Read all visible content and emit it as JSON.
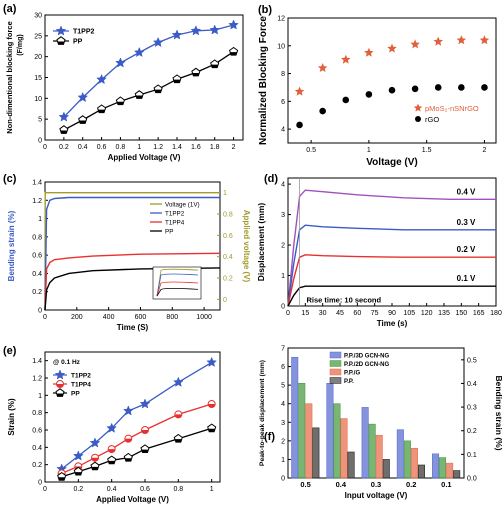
{
  "chart_data": [
    {
      "panel": "(a)",
      "type": "line",
      "xlabel": "Applied Voltage (V)",
      "ylabel": "Non-dimentional blocking force",
      "ylabel_unit": "(F/mg)",
      "xlim": [
        0.0,
        2.1
      ],
      "ylim": [
        0,
        30
      ],
      "xticks": [
        0.0,
        0.2,
        0.4,
        0.6,
        0.8,
        1.0,
        1.2,
        1.4,
        1.6,
        1.8,
        2.0
      ],
      "yticks": [
        0,
        5,
        10,
        15,
        20,
        25,
        30
      ],
      "legend": "top-left",
      "series": [
        {
          "name": "T1PP2",
          "marker": "star",
          "color": "#3b5bc6",
          "x": [
            0.2,
            0.4,
            0.6,
            0.8,
            1.0,
            1.2,
            1.4,
            1.6,
            1.8,
            2.0
          ],
          "y": [
            5.5,
            10.2,
            14.5,
            18.5,
            21.0,
            23.4,
            25.2,
            26.2,
            26.4,
            27.6
          ]
        },
        {
          "name": "PP",
          "marker": "pentagon",
          "color": "#000000",
          "x": [
            0.2,
            0.4,
            0.6,
            0.8,
            1.0,
            1.2,
            1.4,
            1.6,
            1.8,
            2.0
          ],
          "y": [
            2.4,
            4.8,
            7.4,
            9.3,
            10.8,
            12.2,
            14.6,
            16.2,
            18.2,
            21.2
          ]
        }
      ]
    },
    {
      "panel": "(b)",
      "type": "scatter",
      "xlabel": "Voltage (V)",
      "ylabel": "Normalized Blocking Force",
      "xlim": [
        0.3,
        2.1
      ],
      "ylim": [
        3,
        12
      ],
      "xticks": [
        0.5,
        1.0,
        1.5,
        2.0
      ],
      "yticks": [
        4,
        6,
        8,
        10,
        12
      ],
      "legend": "bottom-right",
      "series": [
        {
          "name": "pMoS₂-nSNrGO",
          "marker": "star",
          "color": "#e0603a",
          "x": [
            0.4,
            0.6,
            0.8,
            1.0,
            1.2,
            1.4,
            1.6,
            1.8,
            2.0
          ],
          "y": [
            6.7,
            8.4,
            9.0,
            9.5,
            9.8,
            10.1,
            10.3,
            10.4,
            10.4
          ]
        },
        {
          "name": "rGO",
          "marker": "circle",
          "color": "#000000",
          "x": [
            0.4,
            0.6,
            0.8,
            1.0,
            1.2,
            1.4,
            1.6,
            1.8,
            2.0
          ],
          "y": [
            4.3,
            5.3,
            6.1,
            6.5,
            6.8,
            6.9,
            7.0,
            7.0,
            7.0
          ]
        }
      ]
    },
    {
      "panel": "(c)",
      "type": "line",
      "xlabel": "Time (S)",
      "ylabel": "Bending strain (%)",
      "ylabel_right": "Applied voltage (V)",
      "xlim": [
        0,
        1100
      ],
      "ylim": [
        0,
        1.4
      ],
      "ylim_right": [
        -0.1,
        1.1
      ],
      "xticks": [
        0,
        200,
        400,
        600,
        800,
        1000
      ],
      "yticks": [
        0.0,
        0.2,
        0.4,
        0.6,
        0.8,
        1.0,
        1.2,
        1.4
      ],
      "yticks_right": [
        0.0,
        0.2,
        0.4,
        0.6,
        0.8,
        1.0
      ],
      "legend": "right",
      "series": [
        {
          "name": "Voltage (1V)",
          "color": "#a39b2a",
          "axis": "right",
          "x": [
            0,
            1,
            1100
          ],
          "y": [
            -0.1,
            1.0,
            1.0
          ]
        },
        {
          "name": "T1PP2",
          "color": "#3b5bc6",
          "x": [
            0,
            10,
            30,
            60,
            150,
            300,
            600,
            1100
          ],
          "y": [
            0,
            1.1,
            1.2,
            1.22,
            1.23,
            1.23,
            1.23,
            1.23
          ]
        },
        {
          "name": "T1PP4",
          "color": "#e83030",
          "x": [
            0,
            10,
            30,
            60,
            150,
            300,
            600,
            1100
          ],
          "y": [
            0,
            0.45,
            0.52,
            0.55,
            0.57,
            0.59,
            0.61,
            0.62
          ]
        },
        {
          "name": "PP",
          "color": "#000000",
          "x": [
            0,
            10,
            30,
            60,
            150,
            300,
            600,
            1100
          ],
          "y": [
            0,
            0.22,
            0.3,
            0.35,
            0.4,
            0.43,
            0.45,
            0.46
          ]
        }
      ]
    },
    {
      "panel": "(d)",
      "type": "line",
      "xlabel": "Time (s)",
      "ylabel": "Displacement (mm)",
      "xlim": [
        0,
        180
      ],
      "ylim": [
        0,
        4.2
      ],
      "xticks": [
        0,
        15,
        30,
        45,
        60,
        75,
        90,
        105,
        120,
        135,
        150,
        165,
        180
      ],
      "yticks": [
        0,
        1,
        2,
        3,
        4
      ],
      "annotation": "Rise time: 10 second",
      "series": [
        {
          "name": "0.4 V",
          "color": "#a050c0",
          "x": [
            0,
            5,
            10,
            15,
            30,
            60,
            100,
            140,
            180
          ],
          "y": [
            0,
            2.0,
            3.6,
            3.8,
            3.75,
            3.65,
            3.55,
            3.5,
            3.5
          ]
        },
        {
          "name": "0.3 V",
          "color": "#3b5bc6",
          "x": [
            0,
            5,
            10,
            15,
            30,
            60,
            100,
            140,
            180
          ],
          "y": [
            0,
            1.4,
            2.5,
            2.65,
            2.6,
            2.55,
            2.5,
            2.5,
            2.5
          ]
        },
        {
          "name": "0.2 V",
          "color": "#e83030",
          "x": [
            0,
            5,
            10,
            15,
            30,
            60,
            100,
            140,
            180
          ],
          "y": [
            0,
            0.9,
            1.6,
            1.68,
            1.65,
            1.62,
            1.6,
            1.6,
            1.6
          ]
        },
        {
          "name": "0.1 V",
          "color": "#000000",
          "x": [
            0,
            5,
            10,
            15,
            30,
            60,
            100,
            140,
            180
          ],
          "y": [
            0,
            0.35,
            0.6,
            0.65,
            0.65,
            0.65,
            0.65,
            0.65,
            0.65
          ]
        }
      ]
    },
    {
      "panel": "(e)",
      "type": "line",
      "xlabel": "Applied Voltage (V)",
      "ylabel": "Strain (%)",
      "xlim": [
        0.0,
        1.05
      ],
      "ylim": [
        0.0,
        1.5
      ],
      "xticks": [
        0.0,
        0.2,
        0.4,
        0.6,
        0.8,
        1.0
      ],
      "yticks": [
        0.0,
        0.2,
        0.4,
        0.6,
        0.8,
        1.0,
        1.2,
        1.4
      ],
      "legend": "top-left",
      "legend_note": "@ 0.1 Hz",
      "series": [
        {
          "name": "T1PP2",
          "marker": "star",
          "color": "#3b5bc6",
          "x": [
            0.1,
            0.2,
            0.3,
            0.4,
            0.5,
            0.6,
            0.8,
            1.0
          ],
          "y": [
            0.15,
            0.3,
            0.45,
            0.62,
            0.82,
            0.9,
            1.15,
            1.38
          ]
        },
        {
          "name": "T1PP4",
          "marker": "circle",
          "color": "#e83030",
          "x": [
            0.1,
            0.2,
            0.3,
            0.4,
            0.5,
            0.6,
            0.8,
            1.0
          ],
          "y": [
            0.1,
            0.18,
            0.28,
            0.38,
            0.5,
            0.6,
            0.78,
            0.9
          ]
        },
        {
          "name": "PP",
          "marker": "pentagon",
          "color": "#000000",
          "x": [
            0.1,
            0.2,
            0.3,
            0.4,
            0.5,
            0.6,
            0.8,
            1.0
          ],
          "y": [
            0.06,
            0.12,
            0.18,
            0.25,
            0.28,
            0.38,
            0.5,
            0.62
          ]
        }
      ]
    },
    {
      "panel": "(f)",
      "type": "bar",
      "xlabel": "Input voltage (V)",
      "ylabel": "Peak-to-peak displacement (mm)",
      "ylabel_right": "Bending strain (%)",
      "categories": [
        "0.5",
        "0.4",
        "0.3",
        "0.2",
        "0.1"
      ],
      "ylim": [
        0,
        7
      ],
      "yticks": [
        0,
        1,
        2,
        3,
        4,
        5,
        6,
        7
      ],
      "ylim_right": [
        0,
        0.55
      ],
      "yticks_right": [
        0.0,
        0.1,
        0.2,
        0.3,
        0.4,
        0.5
      ],
      "legend": "top-left",
      "series": [
        {
          "name": "P.P./3D GCN-NG",
          "pattern": "dots",
          "color": "#5b6fd0",
          "values": [
            6.5,
            5.1,
            3.8,
            2.6,
            1.3
          ]
        },
        {
          "name": "P.P./2D GCN-NG",
          "pattern": "dots",
          "color": "#4c9c44",
          "values": [
            5.1,
            4.0,
            2.9,
            2.0,
            1.1
          ]
        },
        {
          "name": "P.P./G",
          "pattern": "hatch",
          "color": "#e87050",
          "values": [
            4.0,
            3.2,
            2.3,
            1.6,
            0.8
          ]
        },
        {
          "name": "P.P.",
          "pattern": "grid",
          "color": "#222222",
          "values": [
            2.7,
            1.4,
            1.0,
            0.7,
            0.4
          ]
        }
      ]
    }
  ],
  "labels": {
    "a": "(a)",
    "b": "(b)",
    "c": "(c)",
    "d": "(d)",
    "e": "(e)",
    "f": "(f)"
  }
}
